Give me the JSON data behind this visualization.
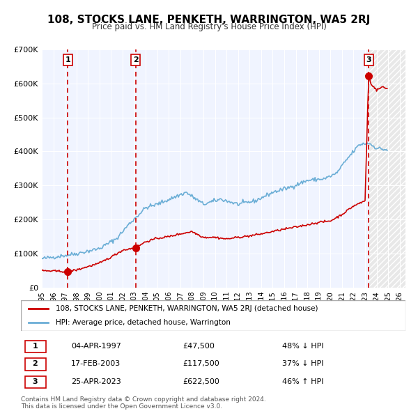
{
  "title": "108, STOCKS LANE, PENKETH, WARRINGTON, WA5 2RJ",
  "subtitle": "Price paid vs. HM Land Registry's House Price Index (HPI)",
  "legend_line1": "108, STOCKS LANE, PENKETH, WARRINGTON, WA5 2RJ (detached house)",
  "legend_line2": "HPI: Average price, detached house, Warrington",
  "table_rows": [
    [
      "1",
      "04-APR-1997",
      "£47,500",
      "48% ↓ HPI"
    ],
    [
      "2",
      "17-FEB-2003",
      "£117,500",
      "37% ↓ HPI"
    ],
    [
      "3",
      "25-APR-2023",
      "£622,500",
      "46% ↑ HPI"
    ]
  ],
  "footnote1": "Contains HM Land Registry data © Crown copyright and database right 2024.",
  "footnote2": "This data is licensed under the Open Government Licence v3.0.",
  "sale_dates": [
    1997.26,
    2003.12,
    2023.31
  ],
  "sale_prices": [
    47500,
    117500,
    622500
  ],
  "sale_labels": [
    "1",
    "2",
    "3"
  ],
  "hpi_color": "#6baed6",
  "price_color": "#cc0000",
  "vline_color": "#cc0000",
  "background_plot": "#f0f4ff",
  "background_future": "#e8e8e8",
  "grid_color": "#ffffff",
  "sale_dot_color": "#cc0000",
  "ylim": [
    0,
    700000
  ],
  "xlim_left": 1995.0,
  "xlim_right": 2026.5,
  "future_start": 2023.31,
  "yticks": [
    0,
    100000,
    200000,
    300000,
    400000,
    500000,
    600000,
    700000
  ],
  "ytick_labels": [
    "£0",
    "£100K",
    "£200K",
    "£300K",
    "£400K",
    "£500K",
    "£600K",
    "£700K"
  ],
  "xticks": [
    1995,
    1996,
    1997,
    1998,
    1999,
    2000,
    2001,
    2002,
    2003,
    2004,
    2005,
    2006,
    2007,
    2008,
    2009,
    2010,
    2011,
    2012,
    2013,
    2014,
    2015,
    2016,
    2017,
    2018,
    2019,
    2020,
    2021,
    2022,
    2023,
    2024,
    2025,
    2026
  ]
}
